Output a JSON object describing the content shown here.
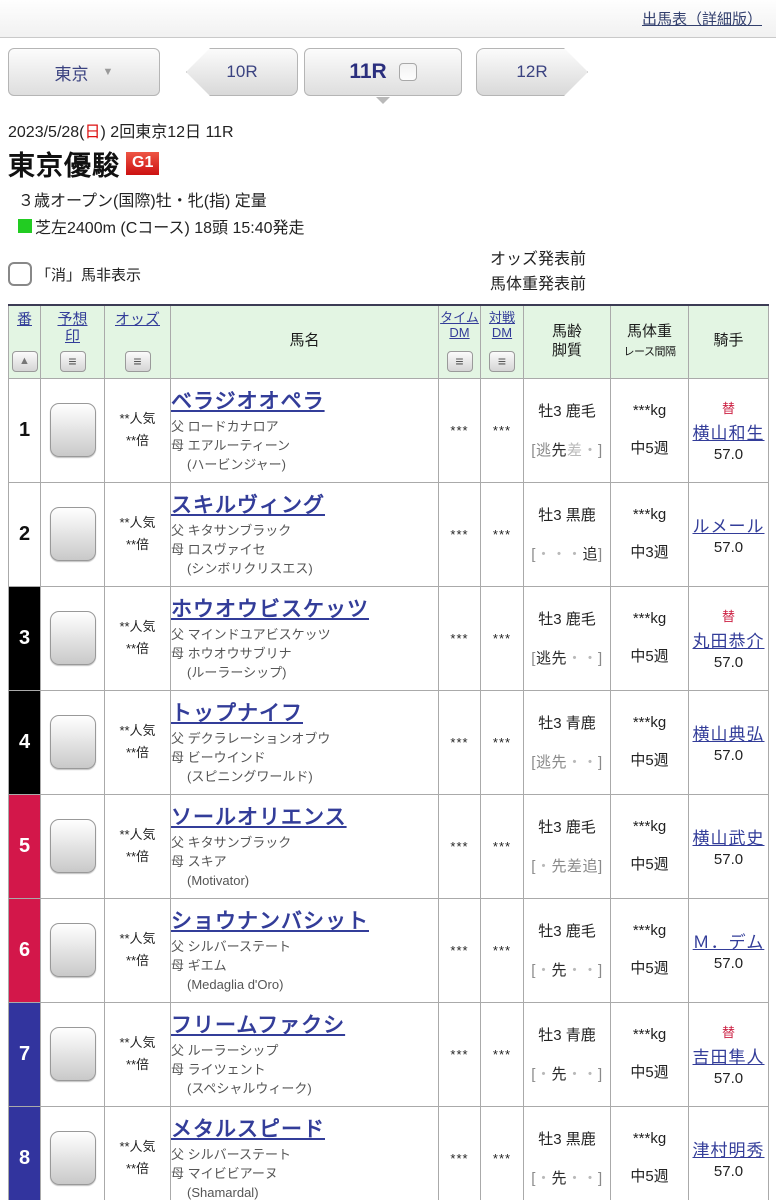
{
  "page": {
    "header_link": "出馬表（詳細版）"
  },
  "icons": {
    "dropdown": "▼",
    "sort_asc": "▲",
    "menu": "≡"
  },
  "colors": {
    "link": "#333d99",
    "waku_red": "#d3174a",
    "waku_blue": "#32349e",
    "waku_black": "#000000",
    "header_green": "#e3f5e3",
    "grade_badge_red": "#cc1111",
    "accent_red": "#cc2244",
    "turf_green": "#22cc22"
  },
  "nav": {
    "track_label": "東京",
    "prev_race": "10R",
    "current_race": "11R",
    "next_race": "12R"
  },
  "race": {
    "date_before": "2023/5/28(",
    "date_day": "日",
    "date_after": ") 2回東京12日 11R",
    "title": "東京優駿",
    "grade": "G1",
    "conditions": "３歳オープン(国際)牡・牝(指) 定量",
    "course": "芝左2400m (Cコース) 18頭 15:40発走"
  },
  "controls": {
    "hide_cancelled_label": "「消」馬非表示",
    "odds_status": "オッズ発表前",
    "weight_status": "馬体重発表前"
  },
  "table": {
    "headers": {
      "number": "番",
      "mark_line1": "予想",
      "mark_line2": "印",
      "odds": "オッズ",
      "horse": "馬名",
      "time_dm_line1": "タイム",
      "time_dm_line2": "DM",
      "vs_dm_line1": "対戦",
      "vs_dm_line2": "DM",
      "age_line1": "馬齢",
      "age_line2": "脚質",
      "weight_line1": "馬体重",
      "weight_line2": "レース間隔",
      "jockey": "騎手"
    },
    "rows": [
      {
        "num": "1",
        "waku": "white",
        "odds_line1": "**人気",
        "odds_line2": "**倍",
        "name": "ベラジオオペラ",
        "sire": "父 ロードカナロア",
        "dam": "母 エアルーティーン",
        "damsire": "(ハービンジャー)",
        "time_dm": "***",
        "vs_dm": "***",
        "age_coat": "牡3 鹿毛",
        "style_chars": [
          {
            "ch": "[",
            "shade": "m"
          },
          {
            "ch": "逃",
            "shade": "m"
          },
          {
            "ch": "先",
            "shade": "d"
          },
          {
            "ch": "差",
            "shade": "l"
          },
          {
            "ch": "・",
            "shade": "l"
          },
          {
            "ch": "]",
            "shade": "m"
          }
        ],
        "weight": "***kg",
        "interval": "中5週",
        "jockey": {
          "sub": "替",
          "name": "横山和生",
          "wt": "57.0"
        }
      },
      {
        "num": "2",
        "waku": "white",
        "odds_line1": "**人気",
        "odds_line2": "**倍",
        "name": "スキルヴィング",
        "sire": "父 キタサンブラック",
        "dam": "母 ロスヴァイセ",
        "damsire": "(シンボリクリスエス)",
        "time_dm": "***",
        "vs_dm": "***",
        "age_coat": "牡3 黒鹿",
        "style_chars": [
          {
            "ch": "[",
            "shade": "m"
          },
          {
            "ch": "・",
            "shade": "l"
          },
          {
            "ch": "・",
            "shade": "l"
          },
          {
            "ch": "・",
            "shade": "l"
          },
          {
            "ch": "追",
            "shade": "d"
          },
          {
            "ch": "]",
            "shade": "m"
          }
        ],
        "weight": "***kg",
        "interval": "中3週",
        "jockey": {
          "sub": "",
          "name": "ルメール",
          "wt": "57.0"
        }
      },
      {
        "num": "3",
        "waku": "black",
        "odds_line1": "**人気",
        "odds_line2": "**倍",
        "name": "ホウオウビスケッツ",
        "sire": "父 マインドユアビスケッツ",
        "dam": "母 ホウオウサブリナ",
        "damsire": "(ルーラーシップ)",
        "time_dm": "***",
        "vs_dm": "***",
        "age_coat": "牡3 鹿毛",
        "style_chars": [
          {
            "ch": "[",
            "shade": "m"
          },
          {
            "ch": "逃",
            "shade": "d"
          },
          {
            "ch": "先",
            "shade": "d"
          },
          {
            "ch": "・",
            "shade": "l"
          },
          {
            "ch": "・",
            "shade": "l"
          },
          {
            "ch": "]",
            "shade": "m"
          }
        ],
        "weight": "***kg",
        "interval": "中5週",
        "jockey": {
          "sub": "替",
          "name": "丸田恭介",
          "wt": "57.0"
        }
      },
      {
        "num": "4",
        "waku": "black",
        "odds_line1": "**人気",
        "odds_line2": "**倍",
        "name": "トップナイフ",
        "sire": "父 デクラレーションオブウ",
        "dam": "母 ビーウインド",
        "damsire": "(スピニングワールド)",
        "time_dm": "***",
        "vs_dm": "***",
        "age_coat": "牡3 青鹿",
        "style_chars": [
          {
            "ch": "[",
            "shade": "m"
          },
          {
            "ch": "逃",
            "shade": "m"
          },
          {
            "ch": "先",
            "shade": "m"
          },
          {
            "ch": "・",
            "shade": "l"
          },
          {
            "ch": "・",
            "shade": "l"
          },
          {
            "ch": "]",
            "shade": "m"
          }
        ],
        "weight": "***kg",
        "interval": "中5週",
        "jockey": {
          "sub": "",
          "name": "横山典弘",
          "wt": "57.0"
        }
      },
      {
        "num": "5",
        "waku": "red",
        "odds_line1": "**人気",
        "odds_line2": "**倍",
        "name": "ソールオリエンス",
        "sire": "父 キタサンブラック",
        "dam": "母 スキア",
        "damsire": "(Motivator)",
        "time_dm": "***",
        "vs_dm": "***",
        "age_coat": "牡3 鹿毛",
        "style_chars": [
          {
            "ch": "[",
            "shade": "m"
          },
          {
            "ch": "・",
            "shade": "l"
          },
          {
            "ch": "先",
            "shade": "m"
          },
          {
            "ch": "差",
            "shade": "m"
          },
          {
            "ch": "追",
            "shade": "m"
          },
          {
            "ch": "]",
            "shade": "m"
          }
        ],
        "weight": "***kg",
        "interval": "中5週",
        "jockey": {
          "sub": "",
          "name": "横山武史",
          "wt": "57.0"
        }
      },
      {
        "num": "6",
        "waku": "red",
        "odds_line1": "**人気",
        "odds_line2": "**倍",
        "name": "ショウナンバシット",
        "sire": "父 シルバーステート",
        "dam": "母 ギエム",
        "damsire": "(Medaglia d'Oro)",
        "time_dm": "***",
        "vs_dm": "***",
        "age_coat": "牡3 鹿毛",
        "style_chars": [
          {
            "ch": "[",
            "shade": "m"
          },
          {
            "ch": "・",
            "shade": "l"
          },
          {
            "ch": "先",
            "shade": "d"
          },
          {
            "ch": "・",
            "shade": "l"
          },
          {
            "ch": "・",
            "shade": "l"
          },
          {
            "ch": "]",
            "shade": "m"
          }
        ],
        "weight": "***kg",
        "interval": "中5週",
        "jockey": {
          "sub": "",
          "name": "Ｍ．デム",
          "wt": "57.0"
        }
      },
      {
        "num": "7",
        "waku": "blue",
        "odds_line1": "**人気",
        "odds_line2": "**倍",
        "name": "フリームファクシ",
        "sire": "父 ルーラーシップ",
        "dam": "母 ライツェント",
        "damsire": "(スペシャルウィーク)",
        "time_dm": "***",
        "vs_dm": "***",
        "age_coat": "牡3 青鹿",
        "style_chars": [
          {
            "ch": "[",
            "shade": "m"
          },
          {
            "ch": "・",
            "shade": "l"
          },
          {
            "ch": "先",
            "shade": "d"
          },
          {
            "ch": "・",
            "shade": "l"
          },
          {
            "ch": "・",
            "shade": "l"
          },
          {
            "ch": "]",
            "shade": "m"
          }
        ],
        "weight": "***kg",
        "interval": "中5週",
        "jockey": {
          "sub": "替",
          "name": "吉田隼人",
          "wt": "57.0"
        }
      },
      {
        "num": "8",
        "waku": "blue",
        "odds_line1": "**人気",
        "odds_line2": "**倍",
        "name": "メタルスピード",
        "sire": "父 シルバーステート",
        "dam": "母 マイビビアーヌ",
        "damsire": "(Shamardal)",
        "time_dm": "***",
        "vs_dm": "***",
        "age_coat": "牡3 黒鹿",
        "style_chars": [
          {
            "ch": "[",
            "shade": "m"
          },
          {
            "ch": "・",
            "shade": "l"
          },
          {
            "ch": "先",
            "shade": "d"
          },
          {
            "ch": "・",
            "shade": "l"
          },
          {
            "ch": "・",
            "shade": "l"
          },
          {
            "ch": "]",
            "shade": "m"
          }
        ],
        "weight": "***kg",
        "interval": "中5週",
        "jockey": {
          "sub": "",
          "name": "津村明秀",
          "wt": "57.0"
        }
      }
    ]
  }
}
